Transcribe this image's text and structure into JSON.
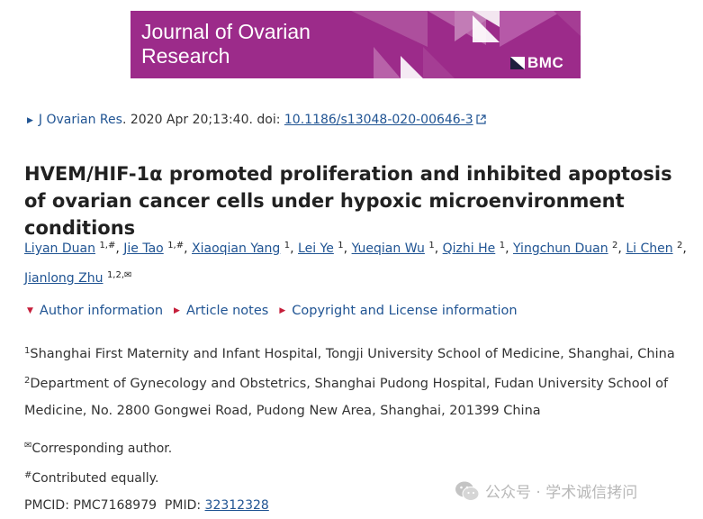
{
  "banner": {
    "title_line1": "Journal of Ovarian",
    "title_line2": "Research",
    "publisher": "BMC",
    "bg_color": "#9c2b8a"
  },
  "citation": {
    "journal": "J Ovarian Res",
    "details": ". 2020 Apr 20;13:40. doi: ",
    "doi": "10.1186/s13048-020-00646-3"
  },
  "title": "HVEM/HIF-1α promoted proliferation and inhibited apoptosis of ovarian cancer cells under hypoxic microenvironment conditions",
  "authors": [
    {
      "name": "Liyan Duan",
      "sup": "1,#",
      "sep": ", "
    },
    {
      "name": "Jie Tao",
      "sup": "1,#",
      "sep": ", "
    },
    {
      "name": "Xiaoqian Yang",
      "sup": "1",
      "sep": ", "
    },
    {
      "name": "Lei Ye",
      "sup": "1",
      "sep": ", "
    },
    {
      "name": "Yueqian Wu",
      "sup": "1",
      "sep": ", "
    },
    {
      "name": "Qizhi He",
      "sup": "1",
      "sep": ", "
    },
    {
      "name": "Yingchun Duan",
      "sup": "2",
      "sep": ", "
    },
    {
      "name": "Li Chen",
      "sup": "2",
      "sep": ","
    },
    {
      "name": "Jianlong Zhu",
      "sup": "1,2,✉",
      "sep": ""
    }
  ],
  "toggles": {
    "author_info": "Author information",
    "article_notes": "Article notes",
    "copyright": "Copyright and License information"
  },
  "affiliations": [
    {
      "sup": "1",
      "text": "Shanghai First Maternity and Infant Hospital, Tongji University School of Medicine, Shanghai, China"
    },
    {
      "sup": "2",
      "text": "Department of Gynecology and Obstetrics, Shanghai Pudong Hospital, Fudan University School of Medicine, No. 2800 Gongwei Road, Pudong New Area, Shanghai, 201399 China"
    }
  ],
  "notes": {
    "corresponding_sup": "✉",
    "corresponding": "Corresponding author.",
    "contributed_sup": "#",
    "contributed": "Contributed equally.",
    "ids_prefix": "PMCID: PMC7168979  PMID: ",
    "pmid": "32312328"
  },
  "watermark": {
    "text": "公众号 · 学术诚信拷问"
  },
  "colors": {
    "link": "#205493",
    "toggle_arrow": "#c51e3a"
  },
  "icons": [
    "right-triangle-icon",
    "external-link-icon",
    "down-triangle-icon",
    "envelope-icon",
    "wechat-icon"
  ]
}
